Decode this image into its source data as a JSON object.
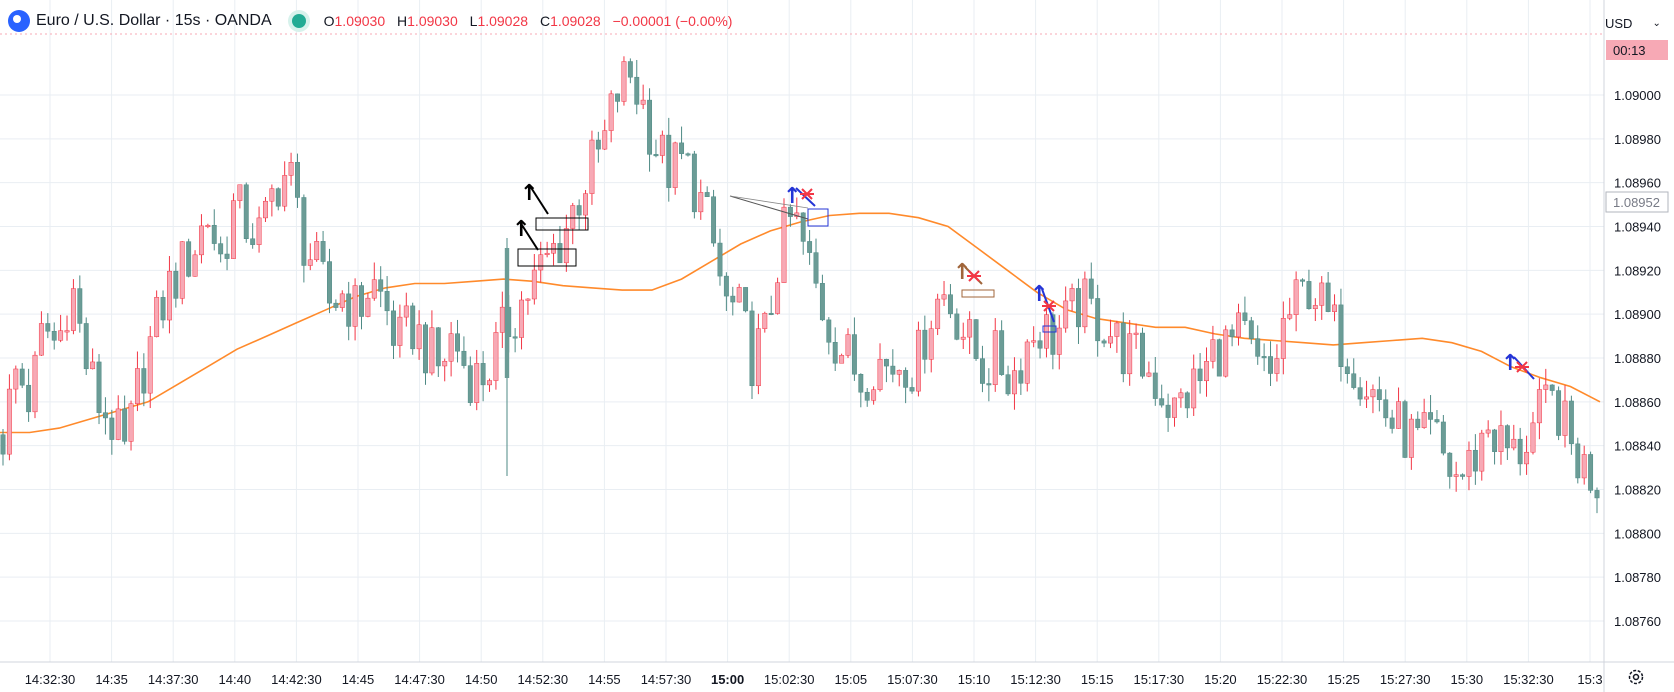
{
  "header": {
    "symbol": "Euro / U.S. Dollar · 15s · OANDA",
    "open_label": "O",
    "open": "1.09030",
    "high_label": "H",
    "high": "1.09030",
    "low_label": "L",
    "low": "1.09028",
    "close_label": "C",
    "close": "1.09028",
    "change": "−0.00001 (−0.00%)"
  },
  "price_scale": {
    "currency": "USD",
    "countdown": "00:13",
    "current_price": "1.08952"
  },
  "colors": {
    "up": "#f7a9b5",
    "up_border": "#f23645",
    "down": "#6b9c96",
    "down_border": "#4e8a85",
    "ma": "#ff8a2b",
    "grid": "#e9eef3"
  },
  "chart_data": {
    "type": "candlestick",
    "ylim": [
      1.08744,
      1.09044
    ],
    "y_ticks": [
      "1.09000",
      "1.08980",
      "1.08960",
      "1.08940",
      "1.08920",
      "1.08900",
      "1.08880",
      "1.08860",
      "1.08840",
      "1.08820",
      "1.08800",
      "1.08780",
      "1.08760"
    ],
    "x_ticks": [
      "14:32:30",
      "14:35",
      "14:37:30",
      "14:40",
      "14:42:30",
      "14:45",
      "14:47:30",
      "14:50",
      "14:52:30",
      "14:55",
      "14:57:30",
      "15:00",
      "15:02:30",
      "15:05",
      "15:07:30",
      "15:10",
      "15:12:30",
      "15:15",
      "15:17:30",
      "15:20",
      "15:22:30",
      "15:25",
      "15:27:30",
      "15:30",
      "15:32:30",
      "15:3"
    ],
    "close_path": [
      1.08845,
      1.08875,
      1.0886,
      1.08895,
      1.08885,
      1.08915,
      1.0888,
      1.0886,
      1.0885,
      1.08835,
      1.0887,
      1.0889,
      1.0891,
      1.0892,
      1.0893,
      1.08945,
      1.08925,
      1.0895,
      1.0894,
      1.08935,
      1.0896,
      1.08965,
      1.08935,
      1.0892,
      1.08905,
      1.0891,
      1.089,
      1.08915,
      1.08905,
      1.08885,
      1.08895,
      1.08885,
      1.08875,
      1.0889,
      1.08875,
      1.0887,
      1.0888,
      1.08895,
      1.08905,
      1.08915,
      1.08925,
      1.08935,
      1.0895,
      1.08965,
      1.08975,
      1.09,
      1.0901,
      1.08995,
      1.08975,
      1.08965,
      1.0897,
      1.08955,
      1.08935,
      1.08905,
      1.089,
      1.0888,
      1.0889,
      1.0893,
      1.08945,
      1.08925,
      1.08905,
      1.0889,
      1.0888,
      1.0887,
      1.0888,
      1.08875,
      1.0888,
      1.08875,
      1.089,
      1.0891,
      1.089,
      1.08885,
      1.08875,
      1.0888,
      1.0887,
      1.08885,
      1.08895,
      1.0889,
      1.08895,
      1.08905,
      1.089,
      1.08895,
      1.08885,
      1.0888,
      1.08875,
      1.08865,
      1.08855,
      1.08865,
      1.0887,
      1.08885,
      1.08885,
      1.0889,
      1.08875,
      1.0887,
      1.08895,
      1.08905,
      1.08915,
      1.089,
      1.0889,
      1.0888,
      1.0887,
      1.0886,
      1.0885,
      1.08845,
      1.0884,
      1.08845,
      1.0883,
      1.08825,
      1.08835,
      1.0885,
      1.0884,
      1.08835,
      1.08845,
      1.08855,
      1.0886,
      1.0884,
      1.0883,
      1.08825
    ],
    "moving_average": [
      1.08846,
      1.08846,
      1.08848,
      1.08852,
      1.08856,
      1.0886,
      1.08868,
      1.08876,
      1.08884,
      1.0889,
      1.08896,
      1.08902,
      1.08908,
      1.08912,
      1.08914,
      1.08914,
      1.08915,
      1.08916,
      1.08915,
      1.08913,
      1.08912,
      1.08911,
      1.08911,
      1.08916,
      1.08924,
      1.08932,
      1.08938,
      1.08942,
      1.08945,
      1.08946,
      1.08946,
      1.08944,
      1.0894,
      1.0893,
      1.0892,
      1.0891,
      1.08902,
      1.08898,
      1.08896,
      1.08894,
      1.08894,
      1.08891,
      1.08889,
      1.08888,
      1.08887,
      1.08886,
      1.08887,
      1.08888,
      1.08889,
      1.08887,
      1.08883,
      1.08876,
      1.08871,
      1.08867,
      1.0886
    ]
  },
  "annotations": {
    "arrow_glyph": "↑"
  }
}
